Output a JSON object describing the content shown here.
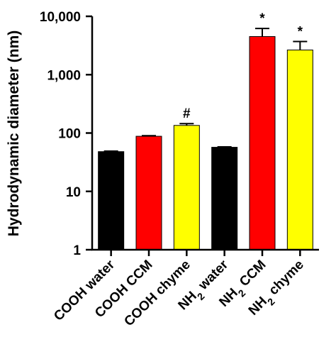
{
  "chart_data": {
    "type": "bar",
    "ylabel": "Hydrodynamic diameter (nm)",
    "yscale": "log",
    "ylim": [
      1,
      10000
    ],
    "yticks": [
      {
        "value": 1,
        "label": "1"
      },
      {
        "value": 10,
        "label": "10"
      },
      {
        "value": 100,
        "label": "100"
      },
      {
        "value": 1000,
        "label": "1,000"
      },
      {
        "value": 10000,
        "label": "10,000"
      }
    ],
    "grid": false,
    "categories": [
      {
        "label": "COOH water",
        "prefix": "COOH water",
        "sub": "",
        "suffix": ""
      },
      {
        "label": "COOH CCM",
        "prefix": "COOH CCM",
        "sub": "",
        "suffix": ""
      },
      {
        "label": "COOH chyme",
        "prefix": "COOH chyme",
        "sub": "",
        "suffix": ""
      },
      {
        "label": "NH2 water",
        "prefix": "NH",
        "sub": "2",
        "suffix": " water"
      },
      {
        "label": "NH2 CCM",
        "prefix": "NH",
        "sub": "2",
        "suffix": " CCM"
      },
      {
        "label": "NH2 chyme",
        "prefix": "NH",
        "sub": "2",
        "suffix": " chyme"
      }
    ],
    "values": [
      48,
      88,
      135,
      57,
      4500,
      2650
    ],
    "error_upper": [
      49,
      90,
      145,
      58,
      6200,
      3700
    ],
    "colors": [
      "#000000",
      "#ff0000",
      "#ffff00",
      "#000000",
      "#ff0000",
      "#ffff00"
    ],
    "annotations": [
      "",
      "",
      "#",
      "",
      "*",
      "*"
    ]
  }
}
